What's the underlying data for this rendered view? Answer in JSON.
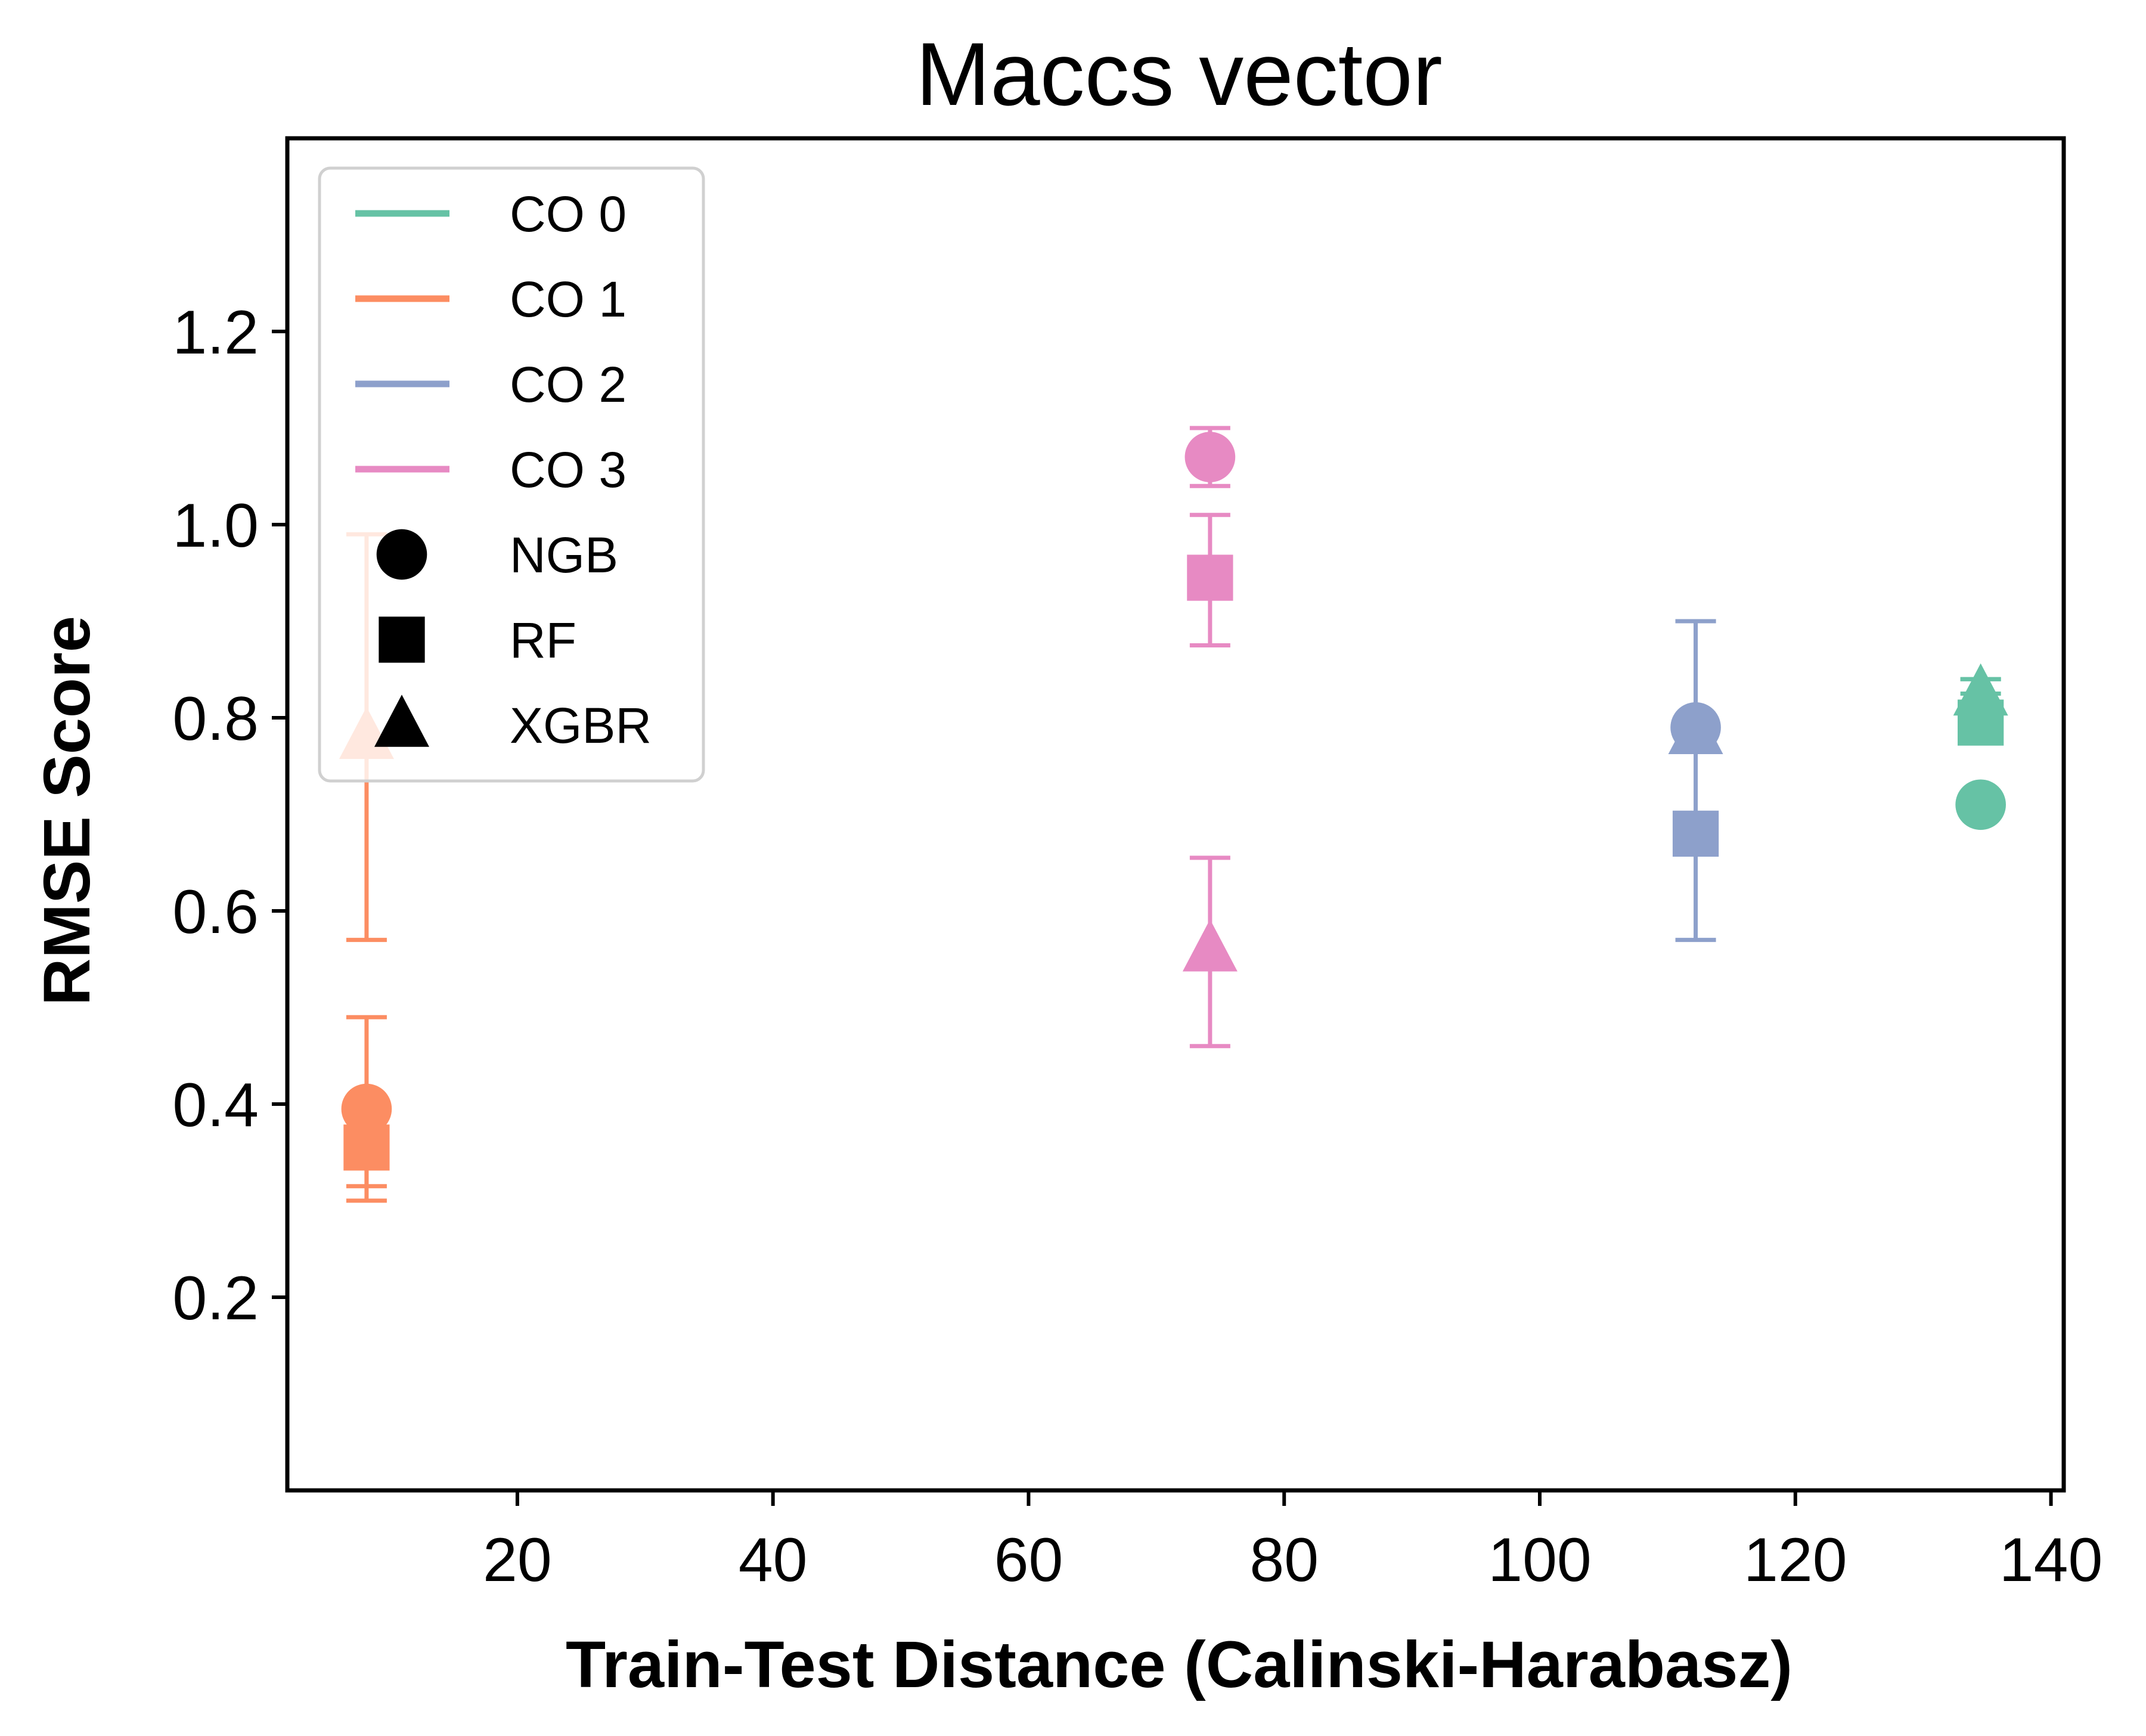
{
  "chart_data": {
    "type": "scatter",
    "title": "Maccs vector",
    "xlabel": "Train-Test Distance (Calinski-Harabasz)",
    "ylabel": "RMSE Score",
    "xlim": [
      2,
      141
    ],
    "ylim": [
      0.0,
      1.4
    ],
    "xticks": [
      20,
      40,
      60,
      80,
      100,
      120,
      140
    ],
    "xtick_labels": [
      "20",
      "40",
      "60",
      "80",
      "100",
      "120",
      "140"
    ],
    "yticks": [
      0.2,
      0.4,
      0.6,
      0.8,
      1.0,
      1.2
    ],
    "ytick_labels": [
      "0.2",
      "0.4",
      "0.6",
      "0.8",
      "1.0",
      "1.2"
    ],
    "grid": false,
    "legend_placement": "top-left",
    "legend": [
      {
        "label": "CO 0",
        "kind": "line",
        "color": "#66c2a5"
      },
      {
        "label": "CO 1",
        "kind": "line",
        "color": "#fc8d62"
      },
      {
        "label": "CO 2",
        "kind": "line",
        "color": "#8da0cb"
      },
      {
        "label": "CO 3",
        "kind": "line",
        "color": "#e78ac3"
      },
      {
        "label": "NGB",
        "kind": "marker",
        "marker": "circle",
        "color": "#000000"
      },
      {
        "label": "RF",
        "kind": "marker",
        "marker": "square",
        "color": "#000000"
      },
      {
        "label": "XGBR",
        "kind": "marker",
        "marker": "triangle",
        "color": "#000000"
      }
    ],
    "points": [
      {
        "group": "CO 1",
        "model": "NGB",
        "marker": "circle",
        "color": "#fc8d62",
        "x": 8.2,
        "y": 0.395,
        "err_low": 0.315,
        "err_high": 0.49
      },
      {
        "group": "CO 1",
        "model": "RF",
        "marker": "square",
        "color": "#fc8d62",
        "x": 8.2,
        "y": 0.355,
        "err_low": 0.3,
        "err_high": 0.4
      },
      {
        "group": "CO 1",
        "model": "XGBR",
        "marker": "triangle",
        "color": "#fc8d62",
        "x": 8.2,
        "y": 0.78,
        "err_low": 0.57,
        "err_high": 0.99
      },
      {
        "group": "CO 3",
        "model": "NGB",
        "marker": "circle",
        "color": "#e78ac3",
        "x": 74.2,
        "y": 1.07,
        "err_low": 1.04,
        "err_high": 1.1
      },
      {
        "group": "CO 3",
        "model": "RF",
        "marker": "square",
        "color": "#e78ac3",
        "x": 74.2,
        "y": 0.945,
        "err_low": 0.875,
        "err_high": 1.01
      },
      {
        "group": "CO 3",
        "model": "XGBR",
        "marker": "triangle",
        "color": "#e78ac3",
        "x": 74.2,
        "y": 0.56,
        "err_low": 0.46,
        "err_high": 0.655
      },
      {
        "group": "CO 2",
        "model": "NGB",
        "marker": "circle",
        "color": "#8da0cb",
        "x": 112.2,
        "y": 0.79,
        "err_low": 0.79,
        "err_high": 0.9
      },
      {
        "group": "CO 2",
        "model": "RF",
        "marker": "square",
        "color": "#8da0cb",
        "x": 112.2,
        "y": 0.68,
        "err_low": 0.57,
        "err_high": 0.79
      },
      {
        "group": "CO 2",
        "model": "XGBR",
        "marker": "triangle",
        "color": "#8da0cb",
        "x": 112.2,
        "y": 0.785,
        "err_low": 0.785,
        "err_high": 0.9
      },
      {
        "group": "CO 0",
        "model": "NGB",
        "marker": "circle",
        "color": "#66c2a5",
        "x": 134.5,
        "y": 0.71,
        "err_low": 0.71,
        "err_high": 0.71
      },
      {
        "group": "CO 0",
        "model": "RF",
        "marker": "square",
        "color": "#66c2a5",
        "x": 134.5,
        "y": 0.795,
        "err_low": 0.795,
        "err_high": 0.84
      },
      {
        "group": "CO 0",
        "model": "XGBR",
        "marker": "triangle",
        "color": "#66c2a5",
        "x": 134.5,
        "y": 0.825,
        "err_low": 0.825,
        "err_high": 0.84
      }
    ]
  }
}
